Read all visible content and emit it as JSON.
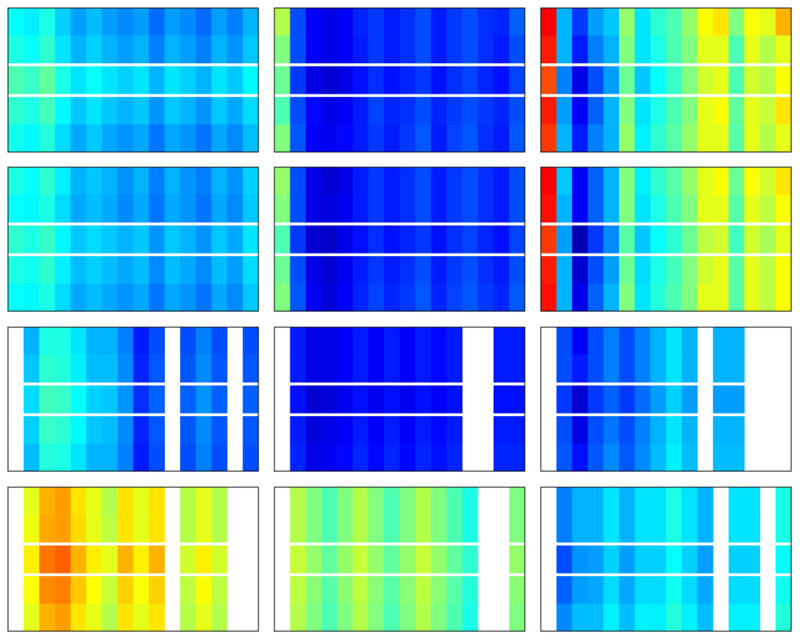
{
  "chart_data": [
    {
      "type": "heatmap",
      "colormap": "jet",
      "clim": [
        0,
        1
      ],
      "values": [
        [
          0.38,
          0.36,
          0.4,
          0.33,
          0.28,
          0.31,
          0.28,
          0.26,
          0.28,
          0.23,
          0.28,
          0.26,
          0.23,
          0.28,
          0.25,
          0.3
        ],
        [
          0.4,
          0.38,
          0.42,
          0.35,
          0.3,
          0.33,
          0.3,
          0.28,
          0.3,
          0.25,
          0.3,
          0.28,
          0.25,
          0.3,
          0.27,
          0.32
        ],
        null,
        [
          0.45,
          0.43,
          0.47,
          0.4,
          0.35,
          0.38,
          0.35,
          0.33,
          0.35,
          0.3,
          0.35,
          0.33,
          0.3,
          0.35,
          0.32,
          0.37
        ],
        null,
        [
          0.42,
          0.4,
          0.44,
          0.37,
          0.32,
          0.35,
          0.32,
          0.3,
          0.32,
          0.27,
          0.32,
          0.3,
          0.27,
          0.32,
          0.29,
          0.34
        ],
        [
          0.39,
          0.37,
          0.41,
          0.34,
          0.29,
          0.32,
          0.29,
          0.27,
          0.29,
          0.24,
          0.29,
          0.27,
          0.24,
          0.29,
          0.26,
          0.31
        ]
      ]
    },
    {
      "type": "heatmap",
      "colormap": "jet",
      "clim": [
        0,
        1
      ],
      "values": [
        [
          0.55,
          0.2,
          0.12,
          0.1,
          0.12,
          0.16,
          0.18,
          0.15,
          0.17,
          0.2,
          0.15,
          0.18,
          0.2,
          0.17,
          0.16,
          0.22
        ],
        [
          0.5,
          0.2,
          0.12,
          0.1,
          0.12,
          0.15,
          0.18,
          0.15,
          0.17,
          0.2,
          0.15,
          0.18,
          0.2,
          0.17,
          0.15,
          0.2
        ],
        null,
        [
          0.48,
          0.18,
          0.1,
          0.08,
          0.1,
          0.14,
          0.17,
          0.14,
          0.16,
          0.18,
          0.14,
          0.17,
          0.19,
          0.16,
          0.14,
          0.19
        ],
        null,
        [
          0.45,
          0.2,
          0.13,
          0.1,
          0.12,
          0.15,
          0.19,
          0.16,
          0.17,
          0.2,
          0.16,
          0.18,
          0.2,
          0.18,
          0.16,
          0.2
        ],
        [
          0.5,
          0.21,
          0.12,
          0.11,
          0.13,
          0.15,
          0.18,
          0.15,
          0.18,
          0.21,
          0.15,
          0.19,
          0.21,
          0.17,
          0.15,
          0.21
        ]
      ]
    },
    {
      "type": "heatmap",
      "colormap": "jet",
      "clim": [
        0,
        1
      ],
      "values": [
        [
          0.88,
          0.3,
          0.18,
          0.28,
          0.32,
          0.52,
          0.35,
          0.42,
          0.45,
          0.52,
          0.62,
          0.65,
          0.5,
          0.62,
          0.6,
          0.7
        ],
        [
          0.85,
          0.3,
          0.15,
          0.25,
          0.3,
          0.5,
          0.35,
          0.4,
          0.45,
          0.5,
          0.6,
          0.6,
          0.45,
          0.6,
          0.55,
          0.6
        ],
        null,
        [
          0.8,
          0.25,
          0.1,
          0.2,
          0.28,
          0.48,
          0.32,
          0.38,
          0.43,
          0.5,
          0.58,
          0.6,
          0.45,
          0.58,
          0.55,
          0.62
        ],
        null,
        [
          0.85,
          0.28,
          0.12,
          0.22,
          0.3,
          0.5,
          0.35,
          0.4,
          0.45,
          0.5,
          0.6,
          0.62,
          0.47,
          0.6,
          0.57,
          0.65
        ],
        [
          0.82,
          0.3,
          0.15,
          0.25,
          0.3,
          0.52,
          0.36,
          0.42,
          0.46,
          0.52,
          0.6,
          0.6,
          0.46,
          0.6,
          0.55,
          0.6
        ]
      ]
    },
    {
      "type": "heatmap",
      "colormap": "jet",
      "clim": [
        0,
        1
      ],
      "values": [
        [
          0.4,
          0.38,
          0.42,
          0.36,
          0.3,
          0.32,
          0.3,
          0.27,
          0.3,
          0.25,
          0.3,
          0.27,
          0.25,
          0.3,
          0.27,
          0.33
        ],
        [
          0.38,
          0.37,
          0.4,
          0.34,
          0.29,
          0.31,
          0.29,
          0.26,
          0.29,
          0.24,
          0.29,
          0.27,
          0.24,
          0.29,
          0.26,
          0.32
        ],
        null,
        [
          0.42,
          0.4,
          0.43,
          0.37,
          0.32,
          0.34,
          0.32,
          0.3,
          0.32,
          0.27,
          0.32,
          0.3,
          0.27,
          0.32,
          0.29,
          0.35
        ],
        null,
        [
          0.4,
          0.39,
          0.42,
          0.36,
          0.31,
          0.33,
          0.31,
          0.29,
          0.31,
          0.26,
          0.31,
          0.29,
          0.26,
          0.31,
          0.28,
          0.34
        ],
        [
          0.38,
          0.37,
          0.4,
          0.34,
          0.29,
          0.31,
          0.29,
          0.27,
          0.29,
          0.24,
          0.29,
          0.27,
          0.24,
          0.29,
          0.26,
          0.32
        ]
      ]
    },
    {
      "type": "heatmap",
      "colormap": "jet",
      "clim": [
        0,
        1
      ],
      "values": [
        [
          0.52,
          0.2,
          0.1,
          0.08,
          0.1,
          0.15,
          0.18,
          0.15,
          0.17,
          0.2,
          0.15,
          0.18,
          0.2,
          0.17,
          0.15,
          0.2
        ],
        [
          0.5,
          0.2,
          0.1,
          0.09,
          0.11,
          0.15,
          0.18,
          0.15,
          0.17,
          0.2,
          0.15,
          0.18,
          0.2,
          0.17,
          0.15,
          0.2
        ],
        null,
        [
          0.45,
          0.18,
          0.08,
          0.07,
          0.1,
          0.14,
          0.17,
          0.14,
          0.16,
          0.18,
          0.14,
          0.17,
          0.19,
          0.16,
          0.14,
          0.19
        ],
        null,
        [
          0.48,
          0.2,
          0.1,
          0.08,
          0.11,
          0.15,
          0.18,
          0.15,
          0.17,
          0.2,
          0.15,
          0.18,
          0.2,
          0.17,
          0.15,
          0.2
        ],
        [
          0.5,
          0.21,
          0.11,
          0.09,
          0.12,
          0.16,
          0.19,
          0.16,
          0.18,
          0.21,
          0.16,
          0.19,
          0.21,
          0.18,
          0.16,
          0.21
        ]
      ]
    },
    {
      "type": "heatmap",
      "colormap": "jet",
      "clim": [
        0,
        1
      ],
      "values": [
        [
          0.88,
          0.32,
          0.12,
          0.22,
          0.3,
          0.5,
          0.36,
          0.42,
          0.46,
          0.52,
          0.6,
          0.62,
          0.48,
          0.62,
          0.58,
          0.65
        ],
        [
          0.86,
          0.3,
          0.12,
          0.22,
          0.3,
          0.5,
          0.35,
          0.4,
          0.45,
          0.5,
          0.6,
          0.6,
          0.46,
          0.6,
          0.56,
          0.62
        ],
        null,
        [
          0.82,
          0.28,
          0.05,
          0.18,
          0.26,
          0.46,
          0.32,
          0.38,
          0.42,
          0.48,
          0.56,
          0.58,
          0.44,
          0.58,
          0.54,
          0.6
        ],
        null,
        [
          0.85,
          0.3,
          0.08,
          0.2,
          0.28,
          0.48,
          0.34,
          0.4,
          0.44,
          0.5,
          0.58,
          0.6,
          0.46,
          0.6,
          0.56,
          0.62
        ],
        [
          0.86,
          0.3,
          0.1,
          0.22,
          0.3,
          0.5,
          0.35,
          0.41,
          0.45,
          0.5,
          0.6,
          0.6,
          0.46,
          0.6,
          0.56,
          0.62
        ]
      ]
    },
    {
      "type": "heatmap",
      "colormap": "jet",
      "clim": [
        0,
        1
      ],
      "values": [
        [
          null,
          0.3,
          0.4,
          0.4,
          0.35,
          0.3,
          0.3,
          0.25,
          0.15,
          0.2,
          null,
          0.2,
          0.25,
          0.2,
          null,
          0.2
        ],
        [
          null,
          0.32,
          0.42,
          0.41,
          0.36,
          0.31,
          0.31,
          0.26,
          0.16,
          0.21,
          null,
          0.21,
          0.26,
          0.21,
          null,
          0.21
        ],
        null,
        [
          null,
          0.34,
          0.44,
          0.43,
          0.38,
          0.33,
          0.32,
          0.27,
          0.17,
          0.22,
          null,
          0.22,
          0.27,
          0.22,
          null,
          0.22
        ],
        null,
        [
          null,
          0.33,
          0.43,
          0.42,
          0.37,
          0.32,
          0.31,
          0.26,
          0.16,
          0.21,
          null,
          0.21,
          0.26,
          0.21,
          null,
          0.21
        ],
        [
          null,
          0.31,
          0.41,
          0.4,
          0.35,
          0.3,
          0.3,
          0.25,
          0.15,
          0.2,
          null,
          0.2,
          0.25,
          0.2,
          null,
          0.2
        ]
      ]
    },
    {
      "type": "heatmap",
      "colormap": "jet",
      "clim": [
        0,
        1
      ],
      "values": [
        [
          null,
          0.15,
          0.1,
          0.1,
          0.12,
          0.15,
          0.12,
          0.15,
          0.12,
          0.15,
          0.13,
          0.15,
          null,
          null,
          0.15,
          0.15
        ],
        [
          null,
          0.15,
          0.1,
          0.1,
          0.12,
          0.15,
          0.12,
          0.15,
          0.12,
          0.15,
          0.13,
          0.15,
          null,
          null,
          0.15,
          0.15
        ],
        null,
        [
          null,
          0.14,
          0.08,
          0.09,
          0.11,
          0.14,
          0.11,
          0.14,
          0.11,
          0.14,
          0.12,
          0.14,
          null,
          null,
          0.14,
          0.14
        ],
        null,
        [
          null,
          0.15,
          0.09,
          0.1,
          0.12,
          0.15,
          0.12,
          0.15,
          0.12,
          0.15,
          0.13,
          0.15,
          null,
          null,
          0.15,
          0.15
        ],
        [
          null,
          0.16,
          0.1,
          0.11,
          0.13,
          0.16,
          0.13,
          0.16,
          0.13,
          0.16,
          0.14,
          0.16,
          null,
          null,
          0.16,
          0.16
        ]
      ]
    },
    {
      "type": "heatmap",
      "colormap": "jet",
      "clim": [
        0,
        1
      ],
      "values": [
        [
          null,
          0.2,
          0.12,
          0.2,
          0.25,
          0.2,
          0.25,
          0.3,
          0.35,
          0.3,
          null,
          0.3,
          0.3,
          null,
          null,
          null
        ],
        [
          null,
          0.2,
          0.15,
          0.2,
          0.25,
          0.2,
          0.25,
          0.3,
          0.35,
          0.3,
          null,
          0.3,
          0.3,
          null,
          null,
          null
        ],
        null,
        [
          null,
          0.18,
          0.08,
          0.18,
          0.22,
          0.18,
          0.23,
          0.28,
          0.33,
          0.28,
          null,
          0.28,
          0.28,
          null,
          null,
          null
        ],
        null,
        [
          null,
          0.2,
          0.1,
          0.2,
          0.24,
          0.2,
          0.25,
          0.3,
          0.35,
          0.3,
          null,
          0.3,
          0.3,
          null,
          null,
          null
        ],
        [
          null,
          0.21,
          0.14,
          0.21,
          0.26,
          0.21,
          0.26,
          0.31,
          0.36,
          0.31,
          null,
          0.31,
          0.31,
          null,
          null,
          null
        ]
      ]
    },
    {
      "type": "heatmap",
      "colormap": "jet",
      "clim": [
        0,
        1
      ],
      "values": [
        [
          null,
          0.6,
          0.7,
          0.72,
          0.65,
          0.6,
          0.55,
          0.65,
          0.6,
          0.65,
          null,
          0.55,
          0.6,
          0.55,
          null,
          null
        ],
        [
          null,
          0.61,
          0.71,
          0.72,
          0.66,
          0.6,
          0.56,
          0.65,
          0.6,
          0.65,
          null,
          0.55,
          0.6,
          0.55,
          null,
          null
        ],
        null,
        [
          null,
          0.64,
          0.76,
          0.78,
          0.7,
          0.64,
          0.6,
          0.7,
          0.64,
          0.7,
          null,
          0.58,
          0.64,
          0.58,
          null,
          null
        ],
        null,
        [
          null,
          0.62,
          0.74,
          0.75,
          0.68,
          0.62,
          0.57,
          0.67,
          0.62,
          0.67,
          null,
          0.56,
          0.62,
          0.56,
          null,
          null
        ],
        [
          null,
          0.6,
          0.7,
          0.72,
          0.65,
          0.6,
          0.55,
          0.65,
          0.6,
          0.65,
          null,
          0.55,
          0.6,
          0.55,
          null,
          null
        ]
      ]
    },
    {
      "type": "heatmap",
      "colormap": "jet",
      "clim": [
        0,
        1
      ],
      "values": [
        [
          null,
          0.55,
          0.5,
          0.45,
          0.5,
          0.55,
          0.5,
          0.45,
          0.5,
          0.55,
          0.5,
          0.45,
          0.4,
          null,
          null,
          0.5
        ],
        [
          null,
          0.55,
          0.5,
          0.45,
          0.5,
          0.55,
          0.5,
          0.45,
          0.5,
          0.55,
          0.5,
          0.45,
          0.4,
          null,
          null,
          0.5
        ],
        null,
        [
          null,
          0.57,
          0.52,
          0.47,
          0.52,
          0.57,
          0.52,
          0.47,
          0.52,
          0.57,
          0.52,
          0.47,
          0.42,
          null,
          null,
          0.52
        ],
        null,
        [
          null,
          0.56,
          0.51,
          0.46,
          0.51,
          0.56,
          0.51,
          0.46,
          0.51,
          0.56,
          0.51,
          0.46,
          0.41,
          null,
          null,
          0.51
        ],
        [
          null,
          0.55,
          0.5,
          0.45,
          0.5,
          0.55,
          0.5,
          0.45,
          0.5,
          0.55,
          0.5,
          0.45,
          0.4,
          null,
          null,
          0.5
        ]
      ]
    },
    {
      "type": "heatmap",
      "colormap": "jet",
      "clim": [
        0,
        1
      ],
      "values": [
        [
          null,
          0.25,
          0.3,
          0.3,
          0.35,
          0.3,
          0.35,
          0.35,
          0.4,
          0.35,
          0.3,
          null,
          0.35,
          0.35,
          null,
          0.4
        ],
        [
          null,
          0.25,
          0.3,
          0.3,
          0.35,
          0.3,
          0.35,
          0.35,
          0.4,
          0.35,
          0.3,
          null,
          0.35,
          0.35,
          null,
          0.4
        ],
        null,
        [
          null,
          0.2,
          0.27,
          0.28,
          0.33,
          0.28,
          0.33,
          0.33,
          0.38,
          0.33,
          0.28,
          null,
          0.33,
          0.33,
          null,
          0.38
        ],
        null,
        [
          null,
          0.22,
          0.28,
          0.29,
          0.34,
          0.29,
          0.34,
          0.34,
          0.39,
          0.34,
          0.29,
          null,
          0.34,
          0.34,
          null,
          0.39
        ],
        [
          null,
          0.26,
          0.31,
          0.31,
          0.36,
          0.31,
          0.36,
          0.36,
          0.41,
          0.36,
          0.31,
          null,
          0.36,
          0.36,
          null,
          0.41
        ]
      ]
    }
  ]
}
